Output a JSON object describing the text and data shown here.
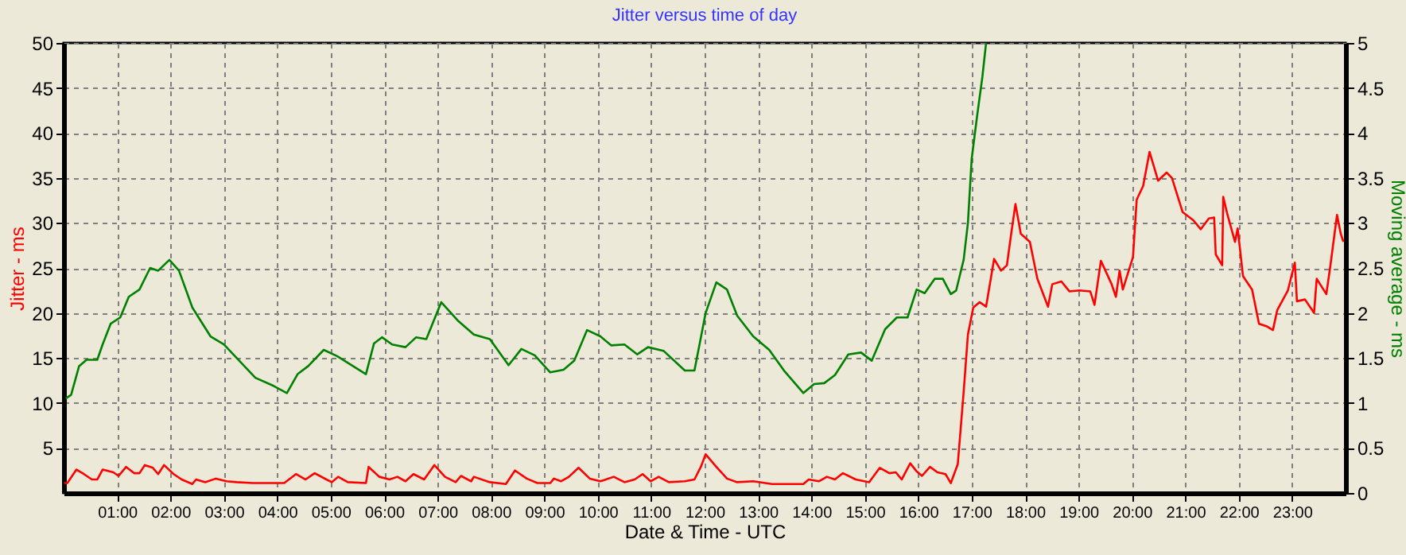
{
  "chart_data": {
    "type": "line",
    "title": "Jitter versus time of day",
    "xlabel": "Date & Time - UTC",
    "ylabel": "Jitter - ms",
    "y2label": "Moving average - ms",
    "xlim": [
      0,
      24
    ],
    "xticks": [
      {
        "value": 1,
        "label": "01:00"
      },
      {
        "value": 2,
        "label": "02:00"
      },
      {
        "value": 3,
        "label": "03:00"
      },
      {
        "value": 4,
        "label": "04:00"
      },
      {
        "value": 5,
        "label": "05:00"
      },
      {
        "value": 6,
        "label": "06:00"
      },
      {
        "value": 7,
        "label": "07:00"
      },
      {
        "value": 8,
        "label": "08:00"
      },
      {
        "value": 9,
        "label": "09:00"
      },
      {
        "value": 10,
        "label": "10:00"
      },
      {
        "value": 11,
        "label": "11:00"
      },
      {
        "value": 12,
        "label": "12:00"
      },
      {
        "value": 13,
        "label": "13:00"
      },
      {
        "value": 14,
        "label": "14:00"
      },
      {
        "value": 15,
        "label": "15:00"
      },
      {
        "value": 16,
        "label": "16:00"
      },
      {
        "value": 17,
        "label": "17:00"
      },
      {
        "value": 18,
        "label": "18:00"
      },
      {
        "value": 19,
        "label": "19:00"
      },
      {
        "value": 20,
        "label": "20:00"
      },
      {
        "value": 21,
        "label": "21:00"
      },
      {
        "value": 22,
        "label": "22:00"
      },
      {
        "value": 23,
        "label": "23:00"
      }
    ],
    "ylim": [
      0,
      50
    ],
    "yticks": [
      5,
      10,
      15,
      20,
      25,
      30,
      35,
      40,
      45,
      50
    ],
    "y2lim": [
      0,
      5
    ],
    "y2ticks": [
      0,
      0.5,
      1,
      1.5,
      2,
      2.5,
      3,
      3.5,
      4,
      4.5,
      5
    ],
    "grid": true,
    "marker": "none",
    "line_style": "solid",
    "series": [
      {
        "color": "#ff0000",
        "x": [
          0.01,
          0.07,
          0.24,
          0.38,
          0.53,
          0.63,
          0.73,
          0.93,
          1.03,
          1.17,
          1.32,
          1.42,
          1.52,
          1.67,
          1.77,
          1.88,
          2.06,
          2.21,
          2.41,
          2.48,
          2.65,
          2.85,
          3.05,
          3.24,
          3.54,
          4.13,
          4.35,
          4.53,
          4.7,
          4.92,
          5.02,
          5.14,
          5.32,
          5.66,
          5.71,
          5.91,
          6.1,
          6.25,
          6.4,
          6.55,
          6.75,
          6.94,
          7.14,
          7.34,
          7.44,
          7.63,
          7.68,
          7.98,
          8.28,
          8.45,
          8.67,
          8.87,
          9.11,
          9.18,
          9.31,
          9.46,
          9.64,
          9.85,
          10.05,
          10.3,
          10.5,
          10.69,
          10.84,
          10.99,
          11.14,
          11.33,
          11.63,
          11.81,
          11.93,
          12.02,
          12.22,
          12.42,
          12.61,
          12.91,
          13.26,
          13.85,
          13.95,
          14.14,
          14.29,
          14.44,
          14.59,
          14.83,
          15.08,
          15.28,
          15.46,
          15.58,
          15.69,
          15.85,
          15.97,
          16.07,
          16.22,
          16.36,
          16.51,
          16.61,
          16.74,
          16.85,
          16.93,
          17.03,
          17.15,
          17.27,
          17.42,
          17.55,
          17.66,
          17.74,
          17.82,
          17.92,
          18.09,
          18.23,
          18.43,
          18.51,
          18.68,
          18.83,
          19.02,
          19.22,
          19.3,
          19.42,
          19.62,
          19.7,
          19.77,
          19.83,
          20.02,
          20.09,
          20.21,
          20.33,
          20.49,
          20.65,
          20.75,
          20.95,
          21.15,
          21.29,
          21.44,
          21.54,
          21.57,
          21.69,
          21.71,
          21.79,
          21.93,
          21.98,
          22.08,
          22.25,
          22.38,
          22.53,
          22.64,
          22.72,
          22.92,
          23.05,
          23.09,
          23.24,
          23.41,
          23.46,
          23.64,
          23.71,
          23.84,
          23.91,
          23.96
        ],
        "values": [
          1.1,
          1.1,
          2.6,
          2.1,
          1.5,
          1.5,
          2.6,
          2.3,
          1.9,
          2.9,
          2.2,
          2.2,
          3.1,
          2.8,
          2.1,
          3.1,
          2.1,
          1.5,
          1.0,
          1.5,
          1.2,
          1.6,
          1.3,
          1.2,
          1.1,
          1.1,
          2.1,
          1.5,
          2.2,
          1.5,
          1.2,
          1.8,
          1.2,
          1.1,
          2.9,
          1.8,
          1.5,
          1.8,
          1.3,
          2.1,
          1.5,
          3.1,
          1.8,
          1.2,
          1.9,
          1.3,
          1.8,
          1.2,
          1.0,
          2.5,
          1.6,
          1.1,
          1.1,
          1.6,
          1.3,
          1.8,
          2.8,
          1.6,
          1.3,
          1.8,
          1.2,
          1.5,
          2.1,
          1.3,
          1.8,
          1.2,
          1.3,
          1.5,
          2.9,
          4.3,
          2.9,
          1.6,
          1.2,
          1.3,
          1.0,
          1.0,
          1.5,
          1.3,
          1.8,
          1.5,
          2.2,
          1.5,
          1.2,
          2.8,
          2.2,
          2.3,
          1.5,
          3.3,
          2.4,
          1.9,
          2.9,
          2.3,
          2.1,
          1.1,
          3.2,
          11.2,
          17.6,
          20.6,
          21.2,
          20.7,
          26.0,
          24.7,
          25.3,
          28.8,
          32.1,
          28.8,
          27.9,
          23.8,
          20.7,
          23.2,
          23.5,
          22.4,
          22.5,
          22.4,
          20.9,
          25.8,
          23.2,
          21.8,
          24.7,
          22.6,
          26.2,
          32.6,
          34.1,
          37.9,
          34.7,
          35.6,
          35.0,
          31.2,
          30.3,
          29.3,
          30.5,
          30.6,
          26.5,
          25.3,
          32.9,
          30.9,
          27.9,
          29.4,
          24.1,
          22.6,
          18.8,
          18.5,
          18.1,
          20.3,
          22.5,
          25.6,
          21.3,
          21.5,
          20.0,
          23.8,
          22.1,
          25.0,
          30.9,
          28.8,
          27.9
        ]
      },
      {
        "color": "#008000",
        "axis": "y2",
        "x": [
          0.04,
          0.14,
          0.29,
          0.43,
          0.63,
          0.73,
          0.88,
          1.06,
          1.22,
          1.42,
          1.62,
          1.77,
          1.98,
          2.16,
          2.41,
          2.75,
          3.0,
          3.59,
          3.93,
          4.18,
          4.38,
          4.58,
          4.87,
          5.12,
          5.66,
          5.81,
          5.96,
          6.15,
          6.4,
          6.6,
          6.79,
          7.07,
          7.39,
          7.68,
          7.98,
          8.33,
          8.57,
          8.82,
          9.11,
          9.36,
          9.56,
          9.8,
          10.05,
          10.25,
          10.5,
          10.74,
          10.94,
          11.23,
          11.63,
          11.81,
          12.02,
          12.22,
          12.42,
          12.61,
          12.91,
          13.21,
          13.5,
          13.85,
          14.05,
          14.24,
          14.44,
          14.69,
          14.93,
          15.13,
          15.38,
          15.6,
          15.8,
          15.97,
          16.12,
          16.31,
          16.46,
          16.61,
          16.71,
          16.85,
          16.93,
          17.0,
          17.1,
          17.2,
          17.27
        ],
        "values": [
          1.05,
          1.09,
          1.41,
          1.48,
          1.48,
          1.65,
          1.88,
          1.95,
          2.18,
          2.26,
          2.5,
          2.47,
          2.59,
          2.47,
          2.06,
          1.74,
          1.65,
          1.28,
          1.19,
          1.11,
          1.32,
          1.41,
          1.59,
          1.52,
          1.32,
          1.66,
          1.73,
          1.65,
          1.62,
          1.73,
          1.71,
          2.12,
          1.91,
          1.76,
          1.71,
          1.42,
          1.6,
          1.53,
          1.34,
          1.37,
          1.47,
          1.81,
          1.74,
          1.64,
          1.65,
          1.54,
          1.62,
          1.58,
          1.36,
          1.36,
          2.0,
          2.34,
          2.26,
          1.97,
          1.74,
          1.59,
          1.35,
          1.11,
          1.21,
          1.22,
          1.31,
          1.54,
          1.56,
          1.47,
          1.82,
          1.95,
          1.95,
          2.26,
          2.22,
          2.38,
          2.38,
          2.21,
          2.25,
          2.59,
          3.0,
          3.71,
          4.18,
          4.62,
          5.0
        ]
      }
    ]
  }
}
